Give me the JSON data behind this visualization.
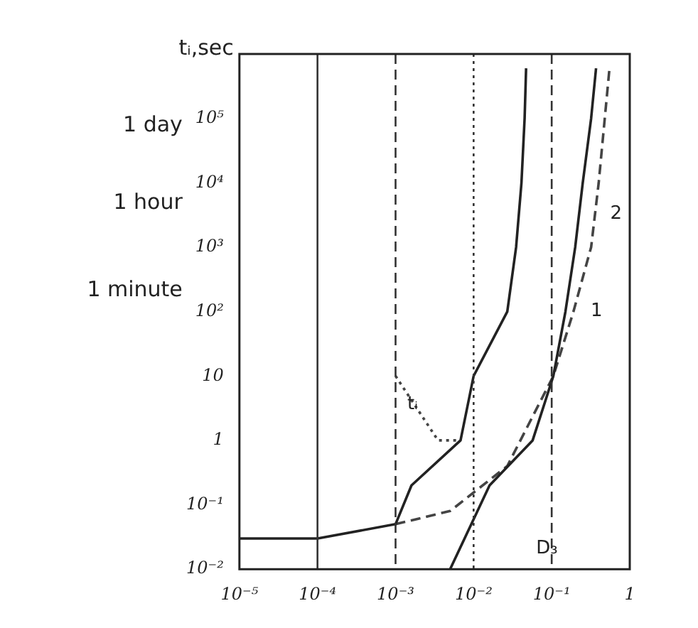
{
  "chart_data": {
    "type": "line",
    "ylabel": "tᵢ,sec",
    "log": "xy",
    "grid": false,
    "legend": false,
    "marker": "none",
    "xlim": [
      1e-05,
      1
    ],
    "ylim": [
      0.01,
      1000000
    ],
    "xticks": [
      {
        "value": 1e-05,
        "label": "10⁻⁵"
      },
      {
        "value": 0.0001,
        "label": "10⁻⁴"
      },
      {
        "value": 0.001,
        "label": "10⁻³"
      },
      {
        "value": 0.01,
        "label": "10⁻²"
      },
      {
        "value": 0.1,
        "label": "10⁻¹"
      },
      1
    ],
    "yticks": [
      {
        "value": 0.01,
        "label": "10⁻²"
      },
      {
        "value": 0.1,
        "label": "10⁻¹"
      },
      1,
      10,
      {
        "value": 100,
        "label": "10²"
      },
      {
        "value": 1000,
        "label": "10³"
      },
      {
        "value": 10000,
        "label": "10⁴"
      },
      {
        "value": 100000,
        "label": "10⁵"
      }
    ],
    "series": [
      {
        "color": "#222222",
        "line_style": "solid",
        "x": [
          1e-05,
          0.0001,
          0.001,
          0.0016,
          0.0068,
          0.01,
          0.027,
          0.035,
          0.041,
          0.045,
          0.047
        ],
        "values": [
          0.03,
          0.03,
          0.05,
          0.2,
          1,
          10,
          100,
          1000,
          10000,
          100000,
          600000
        ]
      },
      {
        "color": "#222222",
        "line_style": "solid",
        "x": [
          0.005,
          0.016,
          0.057,
          0.105,
          0.15,
          0.2,
          0.25,
          0.32,
          0.37
        ],
        "values": [
          0.01,
          0.2,
          1,
          10,
          100,
          1000,
          10000,
          100000,
          600000
        ]
      },
      {
        "color": "#444444",
        "line_style": "dashed",
        "x": [
          0.001,
          0.005,
          0.027,
          0.105,
          0.19,
          0.32,
          0.4,
          0.55
        ],
        "values": [
          0.05,
          0.08,
          0.4,
          10,
          100,
          1000,
          10000,
          600000
        ]
      },
      {
        "color": "#444444",
        "line_style": "dotted",
        "x": [
          0.001,
          0.0035,
          0.0068
        ],
        "values": [
          10,
          1,
          1
        ]
      }
    ],
    "ref_lines": [
      {
        "axis": "x",
        "value": 0.0001,
        "line_style": "solid"
      },
      {
        "axis": "x",
        "value": 0.001,
        "line_style": "dashed"
      },
      {
        "axis": "x",
        "value": 0.01,
        "line_style": "dotted"
      },
      {
        "axis": "x",
        "value": 0.1,
        "line_style": "dashed"
      }
    ],
    "annotations": [
      "1 day",
      "1 hour",
      "1 minute",
      "tᵢ",
      "D₃",
      "1",
      "2"
    ]
  }
}
